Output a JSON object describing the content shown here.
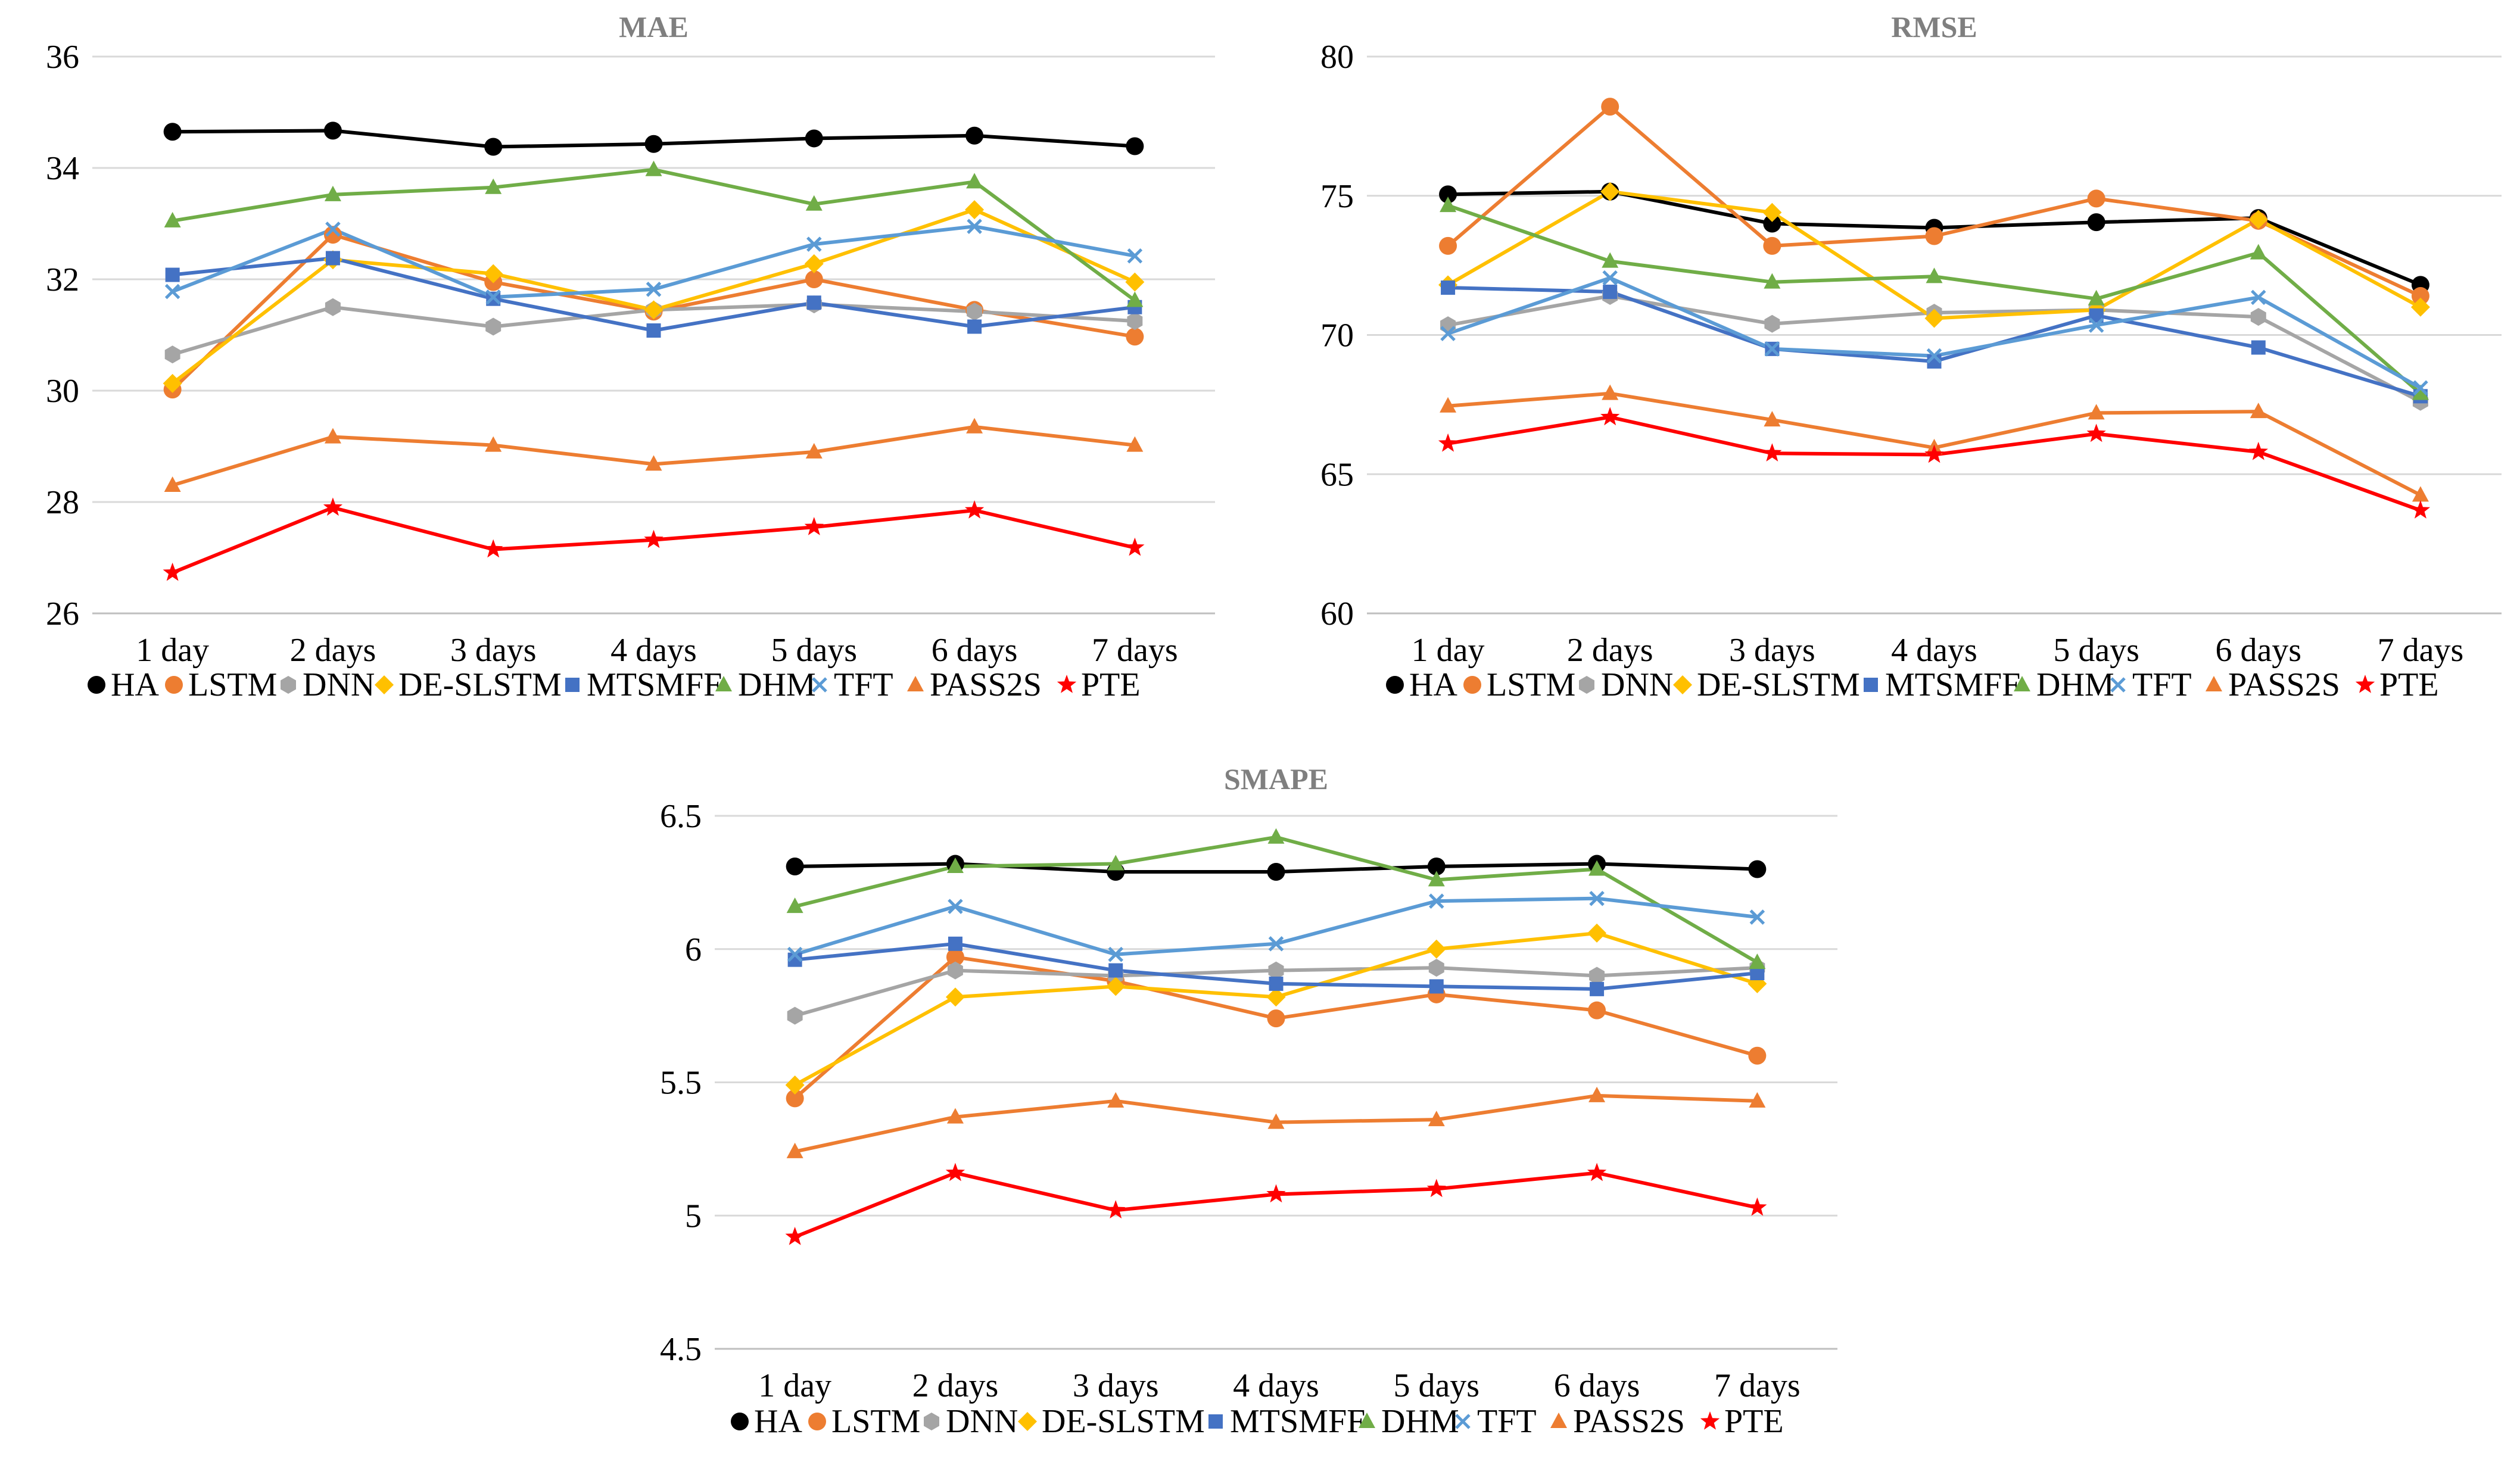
{
  "chart_data": [
    {
      "type": "line",
      "title": "MAE",
      "categories": [
        "1 day",
        "2 days",
        "3 days",
        "4 days",
        "5 days",
        "6 days",
        "7 days"
      ],
      "ylim": [
        26,
        36
      ],
      "yticks": [
        "26",
        "28",
        "30",
        "32",
        "34",
        "36"
      ],
      "series": [
        {
          "name": "HA",
          "values": [
            34.65,
            34.67,
            34.38,
            34.43,
            34.53,
            34.58,
            34.39
          ]
        },
        {
          "name": "LSTM",
          "values": [
            30.02,
            32.8,
            31.95,
            31.42,
            32.0,
            31.45,
            30.97
          ]
        },
        {
          "name": "DNN",
          "values": [
            30.65,
            31.5,
            31.15,
            31.45,
            31.55,
            31.42,
            31.25
          ]
        },
        {
          "name": "DE-SLSTM",
          "values": [
            30.13,
            32.35,
            32.1,
            31.45,
            32.28,
            33.25,
            31.95
          ]
        },
        {
          "name": "MTSMFF",
          "values": [
            32.08,
            32.38,
            31.65,
            31.08,
            31.58,
            31.15,
            31.5
          ]
        },
        {
          "name": "DHM",
          "values": [
            33.05,
            33.52,
            33.65,
            33.97,
            33.35,
            33.75,
            31.62
          ]
        },
        {
          "name": "TFT",
          "values": [
            31.78,
            32.9,
            31.68,
            31.82,
            32.63,
            32.95,
            32.42
          ]
        },
        {
          "name": "PASS2S",
          "values": [
            28.3,
            29.17,
            29.02,
            28.68,
            28.9,
            29.35,
            29.02
          ]
        },
        {
          "name": "PTE",
          "values": [
            26.73,
            27.9,
            27.15,
            27.32,
            27.55,
            27.85,
            27.18
          ]
        }
      ]
    },
    {
      "type": "line",
      "title": "RMSE",
      "categories": [
        "1 day",
        "2 days",
        "3 days",
        "4 days",
        "5 days",
        "6 days",
        "7 days"
      ],
      "ylim": [
        60,
        80
      ],
      "yticks": [
        "60",
        "65",
        "70",
        "75",
        "80"
      ],
      "series": [
        {
          "name": "HA",
          "values": [
            75.05,
            75.15,
            74.0,
            73.85,
            74.05,
            74.2,
            71.8
          ]
        },
        {
          "name": "LSTM",
          "values": [
            73.2,
            78.2,
            73.2,
            73.55,
            74.9,
            74.1,
            71.4
          ]
        },
        {
          "name": "DNN",
          "values": [
            70.35,
            71.4,
            70.4,
            70.8,
            70.9,
            70.65,
            67.6
          ]
        },
        {
          "name": "DE-SLSTM",
          "values": [
            71.8,
            75.15,
            74.4,
            70.6,
            70.9,
            74.15,
            71.0
          ]
        },
        {
          "name": "MTSMFF",
          "values": [
            71.7,
            71.55,
            69.5,
            69.05,
            70.7,
            69.55,
            67.8
          ]
        },
        {
          "name": "DHM",
          "values": [
            74.65,
            72.65,
            71.9,
            72.1,
            71.3,
            72.95,
            67.9
          ]
        },
        {
          "name": "TFT",
          "values": [
            70.05,
            72.05,
            69.5,
            69.25,
            70.35,
            71.35,
            68.1
          ]
        },
        {
          "name": "PASS2S",
          "values": [
            67.45,
            67.9,
            66.95,
            65.95,
            67.2,
            67.25,
            64.25
          ]
        },
        {
          "name": "PTE",
          "values": [
            66.1,
            67.05,
            65.75,
            65.7,
            66.45,
            65.8,
            63.7
          ]
        }
      ]
    },
    {
      "type": "line",
      "title": "SMAPE",
      "categories": [
        "1 day",
        "2 days",
        "3 days",
        "4 days",
        "5 days",
        "6 days",
        "7 days"
      ],
      "ylim": [
        4.5,
        6.5
      ],
      "yticks": [
        "4.5",
        "5",
        "5.5",
        "6",
        "6.5"
      ],
      "series": [
        {
          "name": "HA",
          "values": [
            6.31,
            6.32,
            6.29,
            6.29,
            6.31,
            6.32,
            6.3
          ]
        },
        {
          "name": "LSTM",
          "values": [
            5.44,
            5.97,
            5.88,
            5.74,
            5.83,
            5.77,
            5.6
          ]
        },
        {
          "name": "DNN",
          "values": [
            5.75,
            5.92,
            5.9,
            5.92,
            5.93,
            5.9,
            5.93
          ]
        },
        {
          "name": "DE-SLSTM",
          "values": [
            5.49,
            5.82,
            5.86,
            5.82,
            6.0,
            6.06,
            5.87
          ]
        },
        {
          "name": "MTSMFF",
          "values": [
            5.96,
            6.02,
            5.92,
            5.87,
            5.86,
            5.85,
            5.91
          ]
        },
        {
          "name": "DHM",
          "values": [
            6.16,
            6.31,
            6.32,
            6.42,
            6.26,
            6.3,
            5.95
          ]
        },
        {
          "name": "TFT",
          "values": [
            5.98,
            6.16,
            5.98,
            6.02,
            6.18,
            6.19,
            6.12
          ]
        },
        {
          "name": "PASS2S",
          "values": [
            5.24,
            5.37,
            5.43,
            5.35,
            5.36,
            5.45,
            5.43
          ]
        },
        {
          "name": "PTE",
          "values": [
            4.92,
            5.16,
            5.02,
            5.08,
            5.1,
            5.16,
            5.03
          ]
        }
      ]
    }
  ],
  "series_style": {
    "HA": {
      "color": "#000000",
      "marker": "circle"
    },
    "LSTM": {
      "color": "#ed7d31",
      "marker": "circle"
    },
    "DNN": {
      "color": "#a5a5a5",
      "marker": "hexagon"
    },
    "DE-SLSTM": {
      "color": "#ffc000",
      "marker": "diamond"
    },
    "MTSMFF": {
      "color": "#4472c4",
      "marker": "square"
    },
    "DHM": {
      "color": "#70ad47",
      "marker": "triangle"
    },
    "TFT": {
      "color": "#5b9bd5",
      "marker": "x"
    },
    "PASS2S": {
      "color": "#ed7d31",
      "marker": "triangle"
    },
    "PTE": {
      "color": "#ff0000",
      "marker": "star"
    }
  }
}
